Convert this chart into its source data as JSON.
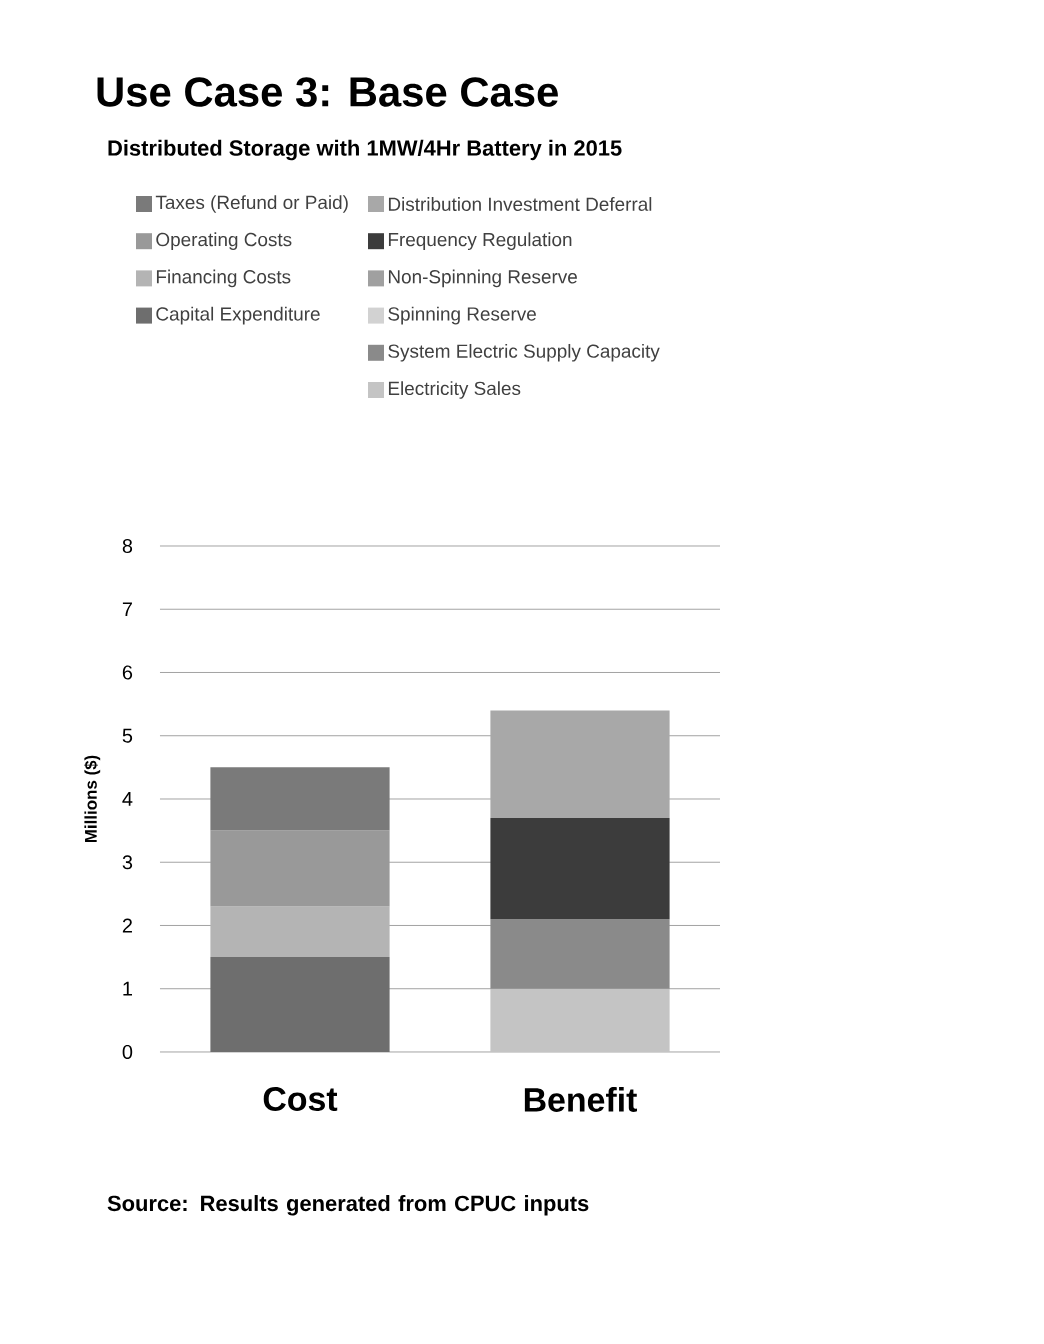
{
  "chart_data": {
    "type": "bar",
    "title": "Use Case 3: Base Case",
    "subtitle": "Distributed Storage with  1MW/4Hr Battery in 2015",
    "ylabel": "Millions ($)",
    "categories": [
      "Cost",
      "Benefit"
    ],
    "stacked": true,
    "series": [
      {
        "name": "Capital Expenditure",
        "color": "#6e6e6e",
        "values": [
          1.5,
          null
        ]
      },
      {
        "name": "Financing Costs",
        "color": "#b4b4b4",
        "values": [
          0.8,
          null
        ]
      },
      {
        "name": "Operating Costs",
        "color": "#999999",
        "values": [
          1.2,
          null
        ]
      },
      {
        "name": "Taxes (Refund or Paid)",
        "color": "#7a7a7a",
        "values": [
          1.0,
          null
        ]
      },
      {
        "name": "Electricity Sales",
        "color": "#c4c4c4",
        "values": [
          null,
          1.0
        ]
      },
      {
        "name": "System Electric Supply Capacity",
        "color": "#8a8a8a",
        "values": [
          null,
          1.1
        ]
      },
      {
        "name": "Spinning Reserve",
        "color": "#d2d2d2",
        "values": [
          null,
          0
        ]
      },
      {
        "name": "Non-Spinning Reserve",
        "color": "#a0a0a0",
        "values": [
          null,
          0
        ]
      },
      {
        "name": "Frequency Regulation",
        "color": "#3c3c3c",
        "values": [
          null,
          1.6
        ]
      },
      {
        "name": "Distribution Investment  Deferral",
        "color": "#a8a8a8",
        "values": [
          null,
          1.7
        ]
      }
    ],
    "ylim": [
      0,
      8
    ],
    "yticks": [
      0,
      1,
      2,
      3,
      4,
      5,
      6,
      7,
      8
    ],
    "grid": "y",
    "legend": "top",
    "annotations": [
      "Source: Results generated from CPUC inputs"
    ]
  }
}
